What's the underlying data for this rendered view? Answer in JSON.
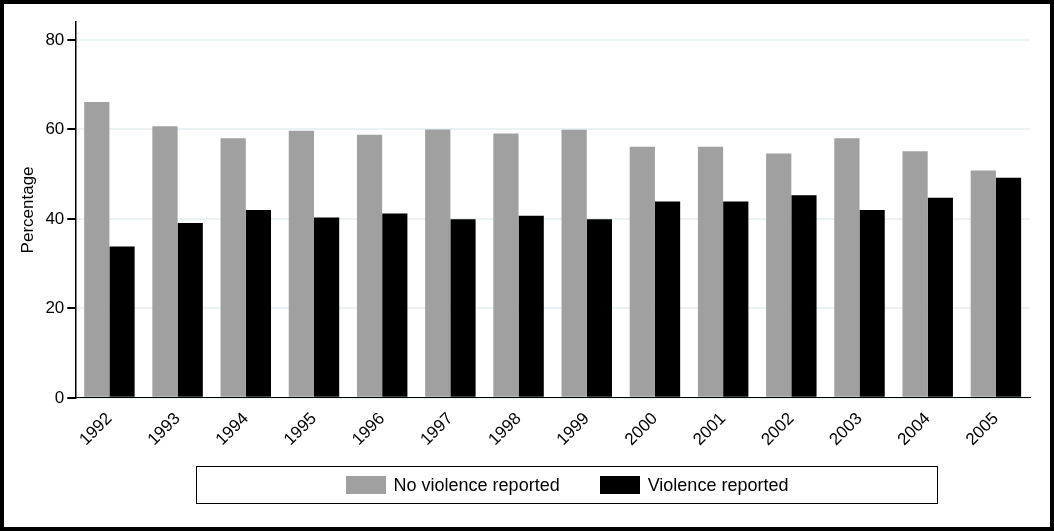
{
  "chart_data": {
    "type": "bar",
    "ylabel": "Percentage",
    "categories": [
      "1992",
      "1993",
      "1994",
      "1995",
      "1996",
      "1997",
      "1998",
      "1999",
      "2000",
      "2001",
      "2002",
      "2003",
      "2004",
      "2005"
    ],
    "series": [
      {
        "name": "No violence reported",
        "color": "#a0a0a0",
        "values": [
          66.1,
          60.7,
          58.0,
          59.7,
          58.8,
          60.0,
          59.1,
          59.9,
          56.1,
          56.1,
          54.6,
          58.0,
          55.1,
          50.8
        ]
      },
      {
        "name": "Violence reported",
        "color": "#000000",
        "values": [
          33.8,
          39.1,
          42.0,
          40.3,
          41.2,
          39.9,
          40.7,
          39.9,
          43.9,
          43.9,
          45.3,
          42.0,
          44.7,
          49.2
        ]
      }
    ],
    "ylim": [
      0,
      84
    ],
    "yticks": [
      0,
      20,
      40,
      60,
      80
    ],
    "grid": "y",
    "legend": "bottom"
  }
}
